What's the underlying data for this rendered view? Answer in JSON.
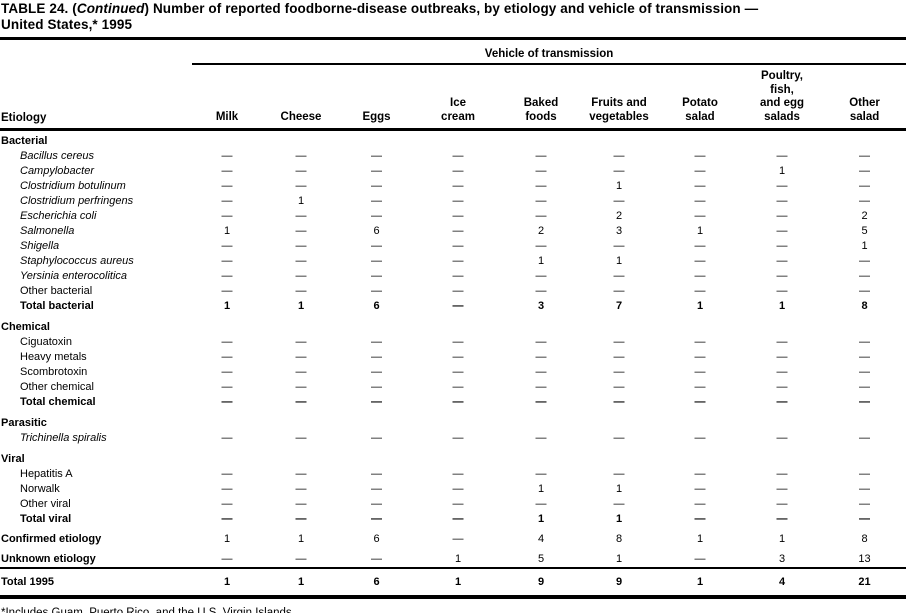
{
  "title": {
    "part1": "TABLE 24. (",
    "continued": "Continued",
    "part2": ") Number of reported foodborne-disease outbreaks, by etiology and vehicle of transmission —",
    "line2": "United States,* 1995"
  },
  "table": {
    "span_header": "Vehicle of transmission",
    "row_header": "Etiology",
    "columns": [
      "Milk",
      "Cheese",
      "Eggs",
      "Ice\ncream",
      "Baked\nfoods",
      "Fruits and\nvegetables",
      "Potato\nsalad",
      "Poultry,\nfish,\nand egg\nsalads",
      "Other\nsalad"
    ],
    "rows": [
      {
        "label": "Bacterial",
        "type": "section"
      },
      {
        "label": "Bacillus cereus",
        "type": "species",
        "values": [
          "—",
          "—",
          "—",
          "—",
          "—",
          "—",
          "—",
          "—",
          "—"
        ]
      },
      {
        "label": "Campylobacter",
        "type": "species",
        "values": [
          "—",
          "—",
          "—",
          "—",
          "—",
          "—",
          "—",
          "1",
          "—"
        ]
      },
      {
        "label": "Clostridium botulinum",
        "type": "species",
        "values": [
          "—",
          "—",
          "—",
          "—",
          "—",
          "1",
          "—",
          "—",
          "—"
        ]
      },
      {
        "label": "Clostridium perfringens",
        "type": "species",
        "values": [
          "—",
          "1",
          "—",
          "—",
          "—",
          "—",
          "—",
          "—",
          "—"
        ]
      },
      {
        "label": "Escherichia coli",
        "type": "species",
        "values": [
          "—",
          "—",
          "—",
          "—",
          "—",
          "2",
          "—",
          "—",
          "2"
        ]
      },
      {
        "label": "Salmonella",
        "type": "species",
        "values": [
          "1",
          "—",
          "6",
          "—",
          "2",
          "3",
          "1",
          "—",
          "5"
        ]
      },
      {
        "label": "Shigella",
        "type": "species",
        "values": [
          "—",
          "—",
          "—",
          "—",
          "—",
          "—",
          "—",
          "—",
          "1"
        ]
      },
      {
        "label": "Staphylococcus aureus",
        "type": "species",
        "values": [
          "—",
          "—",
          "—",
          "—",
          "1",
          "1",
          "—",
          "—",
          "—"
        ]
      },
      {
        "label": "Yersinia enterocolitica",
        "type": "species",
        "values": [
          "—",
          "—",
          "—",
          "—",
          "—",
          "—",
          "—",
          "—",
          "—"
        ]
      },
      {
        "label": "Other bacterial",
        "type": "item",
        "values": [
          "—",
          "—",
          "—",
          "—",
          "—",
          "—",
          "—",
          "—",
          "—"
        ]
      },
      {
        "label": "Total bacterial",
        "type": "total",
        "values": [
          "1",
          "1",
          "6",
          "—",
          "3",
          "7",
          "1",
          "1",
          "8"
        ]
      },
      {
        "label": "Chemical",
        "type": "section"
      },
      {
        "label": "Ciguatoxin",
        "type": "item",
        "values": [
          "—",
          "—",
          "—",
          "—",
          "—",
          "—",
          "—",
          "—",
          "—"
        ]
      },
      {
        "label": "Heavy metals",
        "type": "item",
        "values": [
          "—",
          "—",
          "—",
          "—",
          "—",
          "—",
          "—",
          "—",
          "—"
        ]
      },
      {
        "label": "Scombrotoxin",
        "type": "item",
        "values": [
          "—",
          "—",
          "—",
          "—",
          "—",
          "—",
          "—",
          "—",
          "—"
        ]
      },
      {
        "label": "Other chemical",
        "type": "item",
        "values": [
          "—",
          "—",
          "—",
          "—",
          "—",
          "—",
          "—",
          "—",
          "—"
        ]
      },
      {
        "label": "Total chemical",
        "type": "total",
        "values": [
          "—",
          "—",
          "—",
          "—",
          "—",
          "—",
          "—",
          "—",
          "—"
        ]
      },
      {
        "label": "Parasitic",
        "type": "section"
      },
      {
        "label": "Trichinella spiralis",
        "type": "species",
        "values": [
          "—",
          "—",
          "—",
          "—",
          "—",
          "—",
          "—",
          "—",
          "—"
        ]
      },
      {
        "label": "Viral",
        "type": "section"
      },
      {
        "label": "Hepatitis A",
        "type": "item",
        "values": [
          "—",
          "—",
          "—",
          "—",
          "—",
          "—",
          "—",
          "—",
          "—"
        ]
      },
      {
        "label": "Norwalk",
        "type": "item",
        "values": [
          "—",
          "—",
          "—",
          "—",
          "1",
          "1",
          "—",
          "—",
          "—"
        ]
      },
      {
        "label": "Other viral",
        "type": "item",
        "values": [
          "—",
          "—",
          "—",
          "—",
          "—",
          "—",
          "—",
          "—",
          "—"
        ]
      },
      {
        "label": "Total viral",
        "type": "total",
        "values": [
          "—",
          "—",
          "—",
          "—",
          "1",
          "1",
          "—",
          "—",
          "—"
        ]
      },
      {
        "label": "Confirmed etiology",
        "type": "summary",
        "values": [
          "1",
          "1",
          "6",
          "—",
          "4",
          "8",
          "1",
          "1",
          "8"
        ]
      },
      {
        "label": "Unknown etiology",
        "type": "summary",
        "values": [
          "—",
          "—",
          "—",
          "1",
          "5",
          "1",
          "—",
          "3",
          "13"
        ]
      },
      {
        "label": "Total 1995",
        "type": "grand",
        "values": [
          "1",
          "1",
          "6",
          "1",
          "9",
          "9",
          "1",
          "4",
          "21"
        ]
      }
    ]
  },
  "footnote": "*Includes Guam, Puerto Rico, and the U.S. Virgin Islands."
}
